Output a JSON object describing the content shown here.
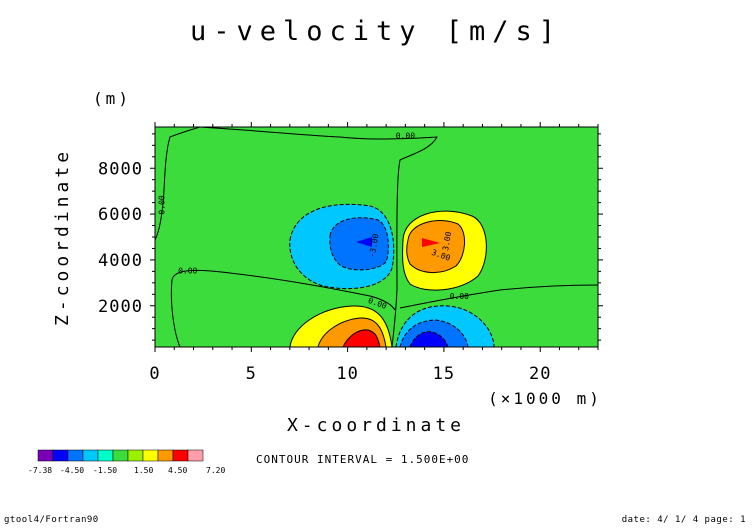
{
  "chart_data": {
    "type": "contour",
    "title": "u-velocity [m/s]",
    "xlabel": "X-coordinate",
    "ylabel": "Z-coordinate",
    "x_unit": "(×1000 m)",
    "y_unit": "(m)",
    "xlim": [
      0,
      23
    ],
    "ylim": [
      200,
      9800
    ],
    "x_ticks": [
      0,
      5,
      10,
      15,
      20
    ],
    "y_ticks": [
      2000,
      4000,
      6000,
      8000
    ],
    "contour_interval_text": "CONTOUR INTERVAL = 1.500E+00",
    "contour_labels": [
      {
        "text": "0.00",
        "x": 13.0,
        "y": 9300
      },
      {
        "text": "0.00",
        "x": 0.5,
        "y": 6400
      },
      {
        "text": "0.00",
        "x": 1.7,
        "y": 3400
      },
      {
        "text": "0.00",
        "x": 11.5,
        "y": 2000
      },
      {
        "text": "0.00",
        "x": 15.8,
        "y": 2300
      },
      {
        "text": "-3.00",
        "x": 11.5,
        "y": 4600
      },
      {
        "text": "3.00",
        "x": 15.3,
        "y": 4800
      },
      {
        "text": "3.00",
        "x": 14.8,
        "y": 4100
      }
    ],
    "field_features": [
      {
        "sign": "negative",
        "center_x": 10.5,
        "center_y": 4700,
        "peak": -5.5
      },
      {
        "sign": "positive",
        "center_x": 14.5,
        "center_y": 4700,
        "peak": 5.5
      },
      {
        "sign": "positive",
        "center_x": 10.5,
        "center_y": 200,
        "peak": 7.2
      },
      {
        "sign": "negative",
        "center_x": 14.5,
        "center_y": 200,
        "peak": -7.38
      }
    ],
    "colorbar": {
      "tick_labels": [
        "-7.38",
        "-4.50",
        "-1.50",
        "1.50",
        "4.50",
        "7.20"
      ],
      "colors": [
        "#7a00b8",
        "#0000ff",
        "#0073ff",
        "#00c8ff",
        "#00ffc8",
        "#3cdc3c",
        "#9bf000",
        "#ffff00",
        "#ff9900",
        "#ff0000",
        "#ff9ea8"
      ]
    },
    "grid": false
  },
  "footer": {
    "left": "gtool4/Fortran90",
    "right": "date: 4/ 1/ 4 page: 1"
  }
}
